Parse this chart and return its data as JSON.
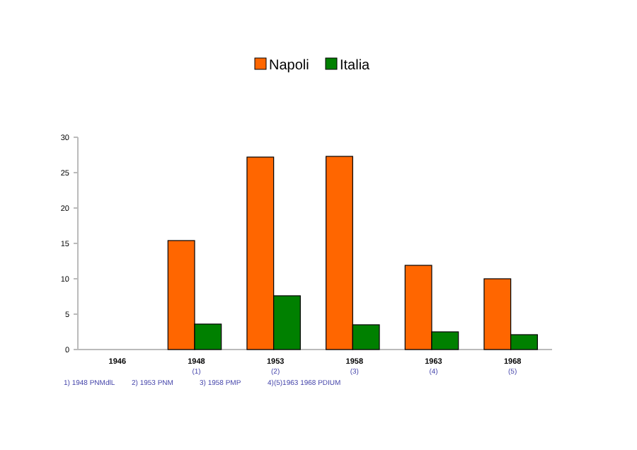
{
  "chart_data": {
    "type": "bar",
    "categories": [
      "1946",
      "1948\n(1)",
      "1953\n(2)",
      "1958\n(3)",
      "1963\n(4)",
      "1968\n(5)"
    ],
    "series": [
      {
        "name": "Napoli",
        "color": "#ff6600",
        "values": [
          null,
          15.4,
          27.2,
          27.3,
          11.9,
          10.0
        ]
      },
      {
        "name": "Italia",
        "color": "#008000",
        "values": [
          null,
          3.6,
          7.6,
          3.5,
          2.5,
          2.1
        ]
      }
    ],
    "ylim": [
      0,
      30
    ],
    "yticks": [
      0,
      5,
      10,
      15,
      20,
      25,
      30
    ],
    "grid": false,
    "legend": "top",
    "annotations": [
      "1) 1948 PNMdlL",
      "2) 1953 PNM",
      "3) 1958 PMP",
      "4)(5)1963 1968 PDIUM"
    ]
  }
}
